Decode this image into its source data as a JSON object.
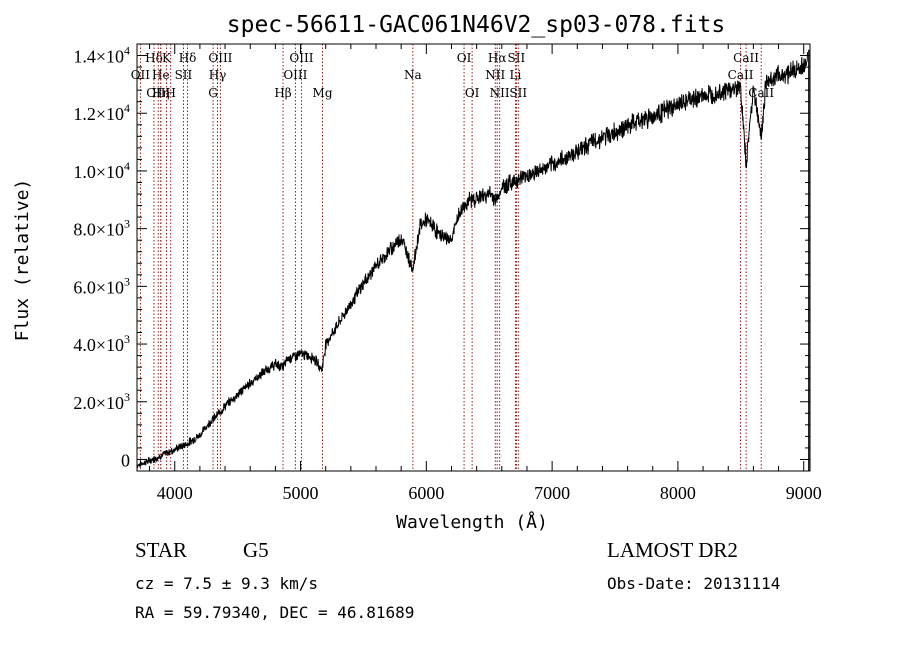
{
  "chart_data": {
    "type": "line",
    "title": "spec-56611-GAC061N46V2_sp03-078.fits",
    "xlabel": "Wavelength (Å)",
    "ylabel": "Flux (relative)",
    "xlim": [
      3700,
      9050
    ],
    "ylim": [
      -400,
      14400
    ],
    "x_ticks": [
      4000,
      5000,
      6000,
      7000,
      8000,
      9000
    ],
    "x_tick_labels": [
      "4000",
      "5000",
      "6000",
      "7000",
      "8000",
      "9000"
    ],
    "y_ticks": [
      0,
      2000,
      4000,
      6000,
      8000,
      10000,
      12000,
      14000
    ],
    "y_tick_labels": [
      {
        "mantissa": "0",
        "exp": ""
      },
      {
        "mantissa": "2.0×10",
        "exp": "3"
      },
      {
        "mantissa": "4.0×10",
        "exp": "3"
      },
      {
        "mantissa": "6.0×10",
        "exp": "3"
      },
      {
        "mantissa": "8.0×10",
        "exp": "3"
      },
      {
        "mantissa": "1.0×10",
        "exp": "4"
      },
      {
        "mantissa": "1.2×10",
        "exp": "4"
      },
      {
        "mantissa": "1.4×10",
        "exp": "4"
      }
    ],
    "grid": false,
    "series": [
      {
        "x": [
          3700,
          3800,
          3900,
          4000,
          4100,
          4200,
          4280,
          4330,
          4400,
          4500,
          4600,
          4700,
          4800,
          4860,
          4900,
          5000,
          5100,
          5170,
          5200,
          5300,
          5400,
          5500,
          5600,
          5700,
          5800,
          5893,
          5950,
          6000,
          6050,
          6100,
          6200,
          6250,
          6300,
          6350,
          6400,
          6500,
          6563,
          6600,
          6700,
          6800,
          6900,
          7000,
          7100,
          7200,
          7300,
          7400,
          7500,
          7600,
          7700,
          7800,
          7900,
          8000,
          8100,
          8200,
          8300,
          8400,
          8498,
          8542,
          8600,
          8662,
          8700,
          8800,
          8900,
          9000,
          9050
        ],
        "y": [
          -200,
          -50,
          150,
          350,
          550,
          850,
          1300,
          1500,
          1850,
          2250,
          2650,
          3000,
          3300,
          3200,
          3500,
          3650,
          3550,
          3100,
          4000,
          4700,
          5400,
          6100,
          6700,
          7200,
          7700,
          6600,
          8100,
          8300,
          8100,
          7800,
          7600,
          8400,
          8800,
          9000,
          9050,
          9200,
          9000,
          9450,
          9650,
          9850,
          10000,
          10200,
          10450,
          10700,
          10950,
          11150,
          11350,
          11550,
          11750,
          11900,
          12100,
          12300,
          12450,
          12600,
          12700,
          12800,
          12900,
          10200,
          12950,
          11100,
          13100,
          13300,
          13450,
          13600,
          14300
        ]
      }
    ],
    "line_markers": [
      {
        "label": "Hδ",
        "wave": 3835,
        "row": 1
      },
      {
        "label": "OII",
        "wave": 3727,
        "row": 2
      },
      {
        "label": "OIII",
        "wave": 3869,
        "row": 3
      },
      {
        "label": "He",
        "wave": 3889,
        "row": 2
      },
      {
        "label": "Hη",
        "wave": 3889,
        "row": 3
      },
      {
        "label": "K",
        "wave": 3934,
        "row": 1
      },
      {
        "label": "SII",
        "wave": 4069,
        "row": 2
      },
      {
        "label": "H",
        "wave": 3968,
        "row": 3
      },
      {
        "label": "Hδ",
        "wave": 4102,
        "row": 1
      },
      {
        "label": "OIII",
        "wave": 4363,
        "row": 1
      },
      {
        "label": "Hγ",
        "wave": 4340,
        "row": 2
      },
      {
        "label": "G",
        "wave": 4305,
        "row": 3
      },
      {
        "label": "OIII",
        "wave": 5007,
        "row": 1
      },
      {
        "label": "OIII",
        "wave": 4959,
        "row": 2
      },
      {
        "label": "Hβ",
        "wave": 4861,
        "row": 3
      },
      {
        "label": "Mg",
        "wave": 5175,
        "row": 3
      },
      {
        "label": "Na",
        "wave": 5893,
        "row": 2
      },
      {
        "label": "OI",
        "wave": 6300,
        "row": 1
      },
      {
        "label": "OI",
        "wave": 6364,
        "row": 3
      },
      {
        "label": "Hα",
        "wave": 6563,
        "row": 1
      },
      {
        "label": "NII",
        "wave": 6548,
        "row": 2
      },
      {
        "label": "NII",
        "wave": 6583,
        "row": 3
      },
      {
        "label": "SII",
        "wave": 6716,
        "row": 1
      },
      {
        "label": "Li",
        "wave": 6708,
        "row": 2
      },
      {
        "label": "SII",
        "wave": 6731,
        "row": 3
      },
      {
        "label": "CaII",
        "wave": 8542,
        "row": 1
      },
      {
        "label": "CaII",
        "wave": 8498,
        "row": 2
      },
      {
        "label": "CaII",
        "wave": 8662,
        "row": 3
      }
    ],
    "colors": {
      "spectrum": "#000000",
      "line_markers": "#8b0000",
      "axes": "#000000"
    }
  },
  "footer": {
    "object_class": "STAR",
    "subclass": "G5",
    "survey": "LAMOST DR2",
    "cz": "cz = 7.5 ± 9.3 km/s",
    "obs_date": "Obs-Date: 20131114",
    "radec": "RA =  59.79340, DEC =  46.81689"
  }
}
